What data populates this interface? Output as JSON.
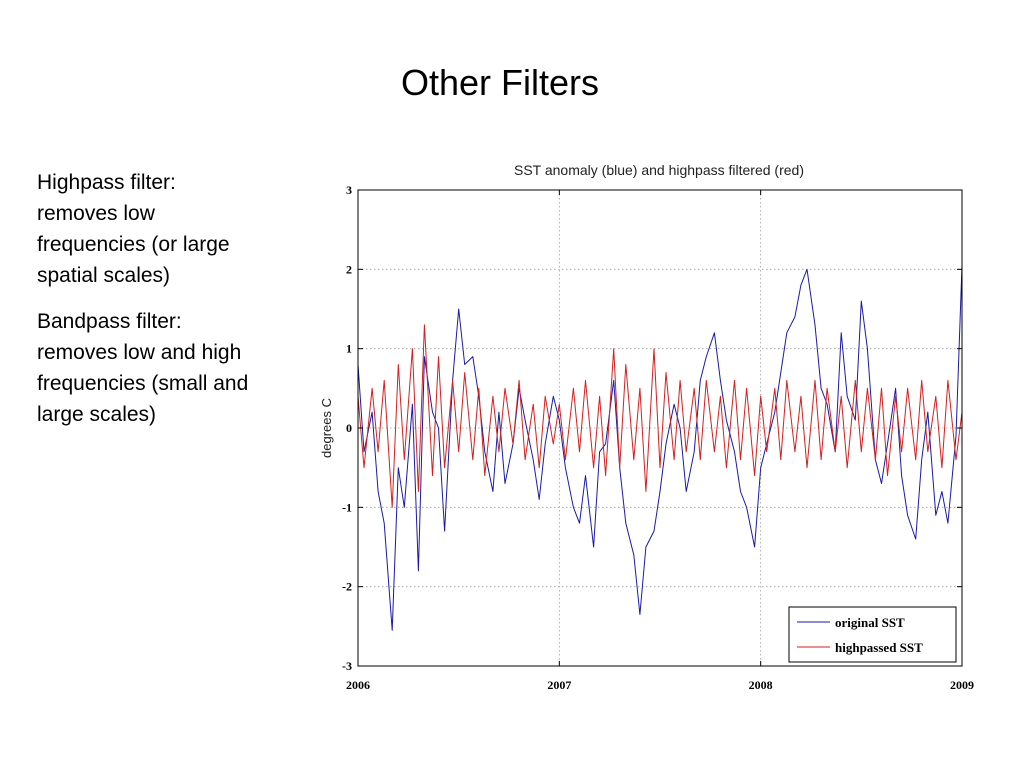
{
  "slide": {
    "title": "Other Filters",
    "bullets": [
      {
        "lines": [
          "Highpass filter:",
          "removes low",
          "frequencies (or large",
          "spatial scales)"
        ]
      },
      {
        "lines": [
          "Bandpass filter:",
          "removes low and high",
          "frequencies (small and",
          "large scales)"
        ]
      }
    ]
  },
  "chart_data": {
    "type": "line",
    "title": "SST anomaly (blue) and highpass filtered (red)",
    "xlabel": "",
    "ylabel": "degrees C",
    "xlim": [
      2006,
      2009
    ],
    "ylim": [
      -3,
      3
    ],
    "x_ticks": [
      "2006",
      "2007",
      "2008",
      "2009"
    ],
    "y_ticks": [
      "3",
      "2",
      "1",
      "0",
      "-1",
      "-2",
      "-3"
    ],
    "grid": true,
    "legend_position": "bottom-right",
    "colors": {
      "original": "#1a1aa8",
      "highpassed": "#d42020"
    },
    "series": [
      {
        "name": "original SST",
        "x": [
          2006.0,
          2006.03,
          2006.07,
          2006.1,
          2006.13,
          2006.17,
          2006.2,
          2006.23,
          2006.27,
          2006.3,
          2006.33,
          2006.37,
          2006.4,
          2006.43,
          2006.47,
          2006.5,
          2006.53,
          2006.57,
          2006.6,
          2006.63,
          2006.67,
          2006.7,
          2006.73,
          2006.77,
          2006.8,
          2006.83,
          2006.87,
          2006.9,
          2006.93,
          2006.97,
          2007.0,
          2007.03,
          2007.07,
          2007.1,
          2007.13,
          2007.17,
          2007.2,
          2007.23,
          2007.27,
          2007.3,
          2007.33,
          2007.37,
          2007.4,
          2007.43,
          2007.47,
          2007.5,
          2007.53,
          2007.57,
          2007.6,
          2007.63,
          2007.67,
          2007.7,
          2007.73,
          2007.77,
          2007.8,
          2007.83,
          2007.87,
          2007.9,
          2007.93,
          2007.97,
          2008.0,
          2008.03,
          2008.07,
          2008.1,
          2008.13,
          2008.17,
          2008.2,
          2008.23,
          2008.27,
          2008.3,
          2008.33,
          2008.37,
          2008.4,
          2008.43,
          2008.47,
          2008.5,
          2008.53,
          2008.57,
          2008.6,
          2008.63,
          2008.67,
          2008.7,
          2008.73,
          2008.77,
          2008.8,
          2008.83,
          2008.87,
          2008.9,
          2008.93,
          2008.97,
          2009.0
        ],
        "y": [
          0.8,
          -0.3,
          0.2,
          -0.8,
          -1.2,
          -2.55,
          -0.5,
          -1.0,
          0.3,
          -1.8,
          0.9,
          0.2,
          0.0,
          -1.3,
          0.6,
          1.5,
          0.8,
          0.9,
          0.4,
          -0.3,
          -0.8,
          0.2,
          -0.7,
          -0.2,
          0.5,
          0.1,
          -0.4,
          -0.9,
          -0.2,
          0.4,
          0.1,
          -0.5,
          -1.0,
          -1.2,
          -0.6,
          -1.5,
          -0.3,
          -0.2,
          0.6,
          -0.5,
          -1.2,
          -1.6,
          -2.35,
          -1.5,
          -1.3,
          -0.8,
          -0.2,
          0.3,
          0.0,
          -0.8,
          -0.3,
          0.6,
          0.9,
          1.2,
          0.6,
          0.1,
          -0.3,
          -0.8,
          -1.0,
          -1.5,
          -0.5,
          -0.2,
          0.2,
          0.7,
          1.2,
          1.4,
          1.8,
          2.0,
          1.3,
          0.5,
          0.3,
          -0.3,
          1.2,
          0.4,
          0.1,
          1.6,
          1.0,
          -0.4,
          -0.7,
          -0.2,
          0.5,
          -0.6,
          -1.1,
          -1.4,
          -0.4,
          0.2,
          -1.1,
          -0.8,
          -1.2,
          -0.1,
          2.05
        ]
      },
      {
        "name": "highpassed SST",
        "x": [
          2006.0,
          2006.03,
          2006.07,
          2006.1,
          2006.13,
          2006.17,
          2006.2,
          2006.23,
          2006.27,
          2006.3,
          2006.33,
          2006.37,
          2006.4,
          2006.43,
          2006.47,
          2006.5,
          2006.53,
          2006.57,
          2006.6,
          2006.63,
          2006.67,
          2006.7,
          2006.73,
          2006.77,
          2006.8,
          2006.83,
          2006.87,
          2006.9,
          2006.93,
          2006.97,
          2007.0,
          2007.03,
          2007.07,
          2007.1,
          2007.13,
          2007.17,
          2007.2,
          2007.23,
          2007.27,
          2007.3,
          2007.33,
          2007.37,
          2007.4,
          2007.43,
          2007.47,
          2007.5,
          2007.53,
          2007.57,
          2007.6,
          2007.63,
          2007.67,
          2007.7,
          2007.73,
          2007.77,
          2007.8,
          2007.83,
          2007.87,
          2007.9,
          2007.93,
          2007.97,
          2008.0,
          2008.03,
          2008.07,
          2008.1,
          2008.13,
          2008.17,
          2008.2,
          2008.23,
          2008.27,
          2008.3,
          2008.33,
          2008.37,
          2008.4,
          2008.43,
          2008.47,
          2008.5,
          2008.53,
          2008.57,
          2008.6,
          2008.63,
          2008.67,
          2008.7,
          2008.73,
          2008.77,
          2008.8,
          2008.83,
          2008.87,
          2008.9,
          2008.93,
          2008.97,
          2009.0
        ],
        "y": [
          0.4,
          -0.5,
          0.5,
          -0.3,
          0.6,
          -1.0,
          0.8,
          -0.4,
          1.0,
          -0.8,
          1.3,
          -0.6,
          0.9,
          -0.5,
          0.6,
          -0.3,
          0.7,
          -0.4,
          0.5,
          -0.6,
          0.4,
          -0.3,
          0.5,
          -0.2,
          0.6,
          -0.4,
          0.3,
          -0.5,
          0.4,
          -0.2,
          0.3,
          -0.4,
          0.5,
          -0.3,
          0.6,
          -0.5,
          0.4,
          -0.6,
          1.0,
          -0.5,
          0.8,
          -0.4,
          0.5,
          -0.8,
          1.0,
          -0.5,
          0.7,
          -0.4,
          0.6,
          -0.3,
          0.5,
          -0.4,
          0.6,
          -0.3,
          0.4,
          -0.5,
          0.6,
          -0.4,
          0.5,
          -0.6,
          0.4,
          -0.3,
          0.5,
          -0.4,
          0.6,
          -0.3,
          0.4,
          -0.5,
          0.6,
          -0.4,
          0.5,
          -0.3,
          0.4,
          -0.5,
          0.6,
          -0.3,
          0.5,
          -0.4,
          0.5,
          -0.6,
          0.4,
          -0.3,
          0.5,
          -0.4,
          0.6,
          -0.3,
          0.4,
          -0.5,
          0.6,
          -0.4,
          0.2
        ]
      }
    ]
  }
}
